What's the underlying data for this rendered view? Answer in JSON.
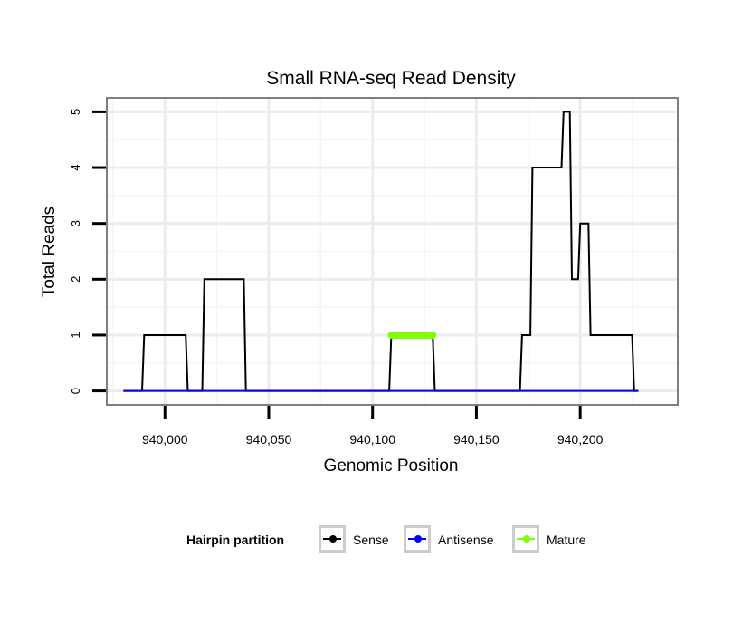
{
  "chart_data": {
    "type": "line",
    "title": "Small RNA-seq Read Density",
    "xlabel": "Genomic Position",
    "ylabel": "Total Reads",
    "xlim": [
      939972,
      940247
    ],
    "ylim": [
      -0.25,
      5.25
    ],
    "x_ticks": [
      940000,
      940050,
      940100,
      940150,
      940200
    ],
    "x_tick_labels": [
      "940,000",
      "940,050",
      "940,100",
      "940,150",
      "940,200"
    ],
    "y_ticks": [
      0,
      1,
      2,
      3,
      4,
      5
    ],
    "y_tick_labels": [
      "0",
      "1",
      "2",
      "3",
      "4",
      "5"
    ],
    "grid": true,
    "legend": {
      "title": "Hairpin partition",
      "position": "bottom",
      "entries": [
        "Sense",
        "Antisense",
        "Mature"
      ]
    },
    "series": [
      {
        "name": "Sense",
        "color": "#000000",
        "x": [
          939980,
          939989,
          939990,
          940010,
          940011,
          940018,
          940019,
          940038,
          940039,
          940108,
          940109,
          940129,
          940130,
          940171,
          940172,
          940176,
          940177,
          940191,
          940192,
          940195,
          940196,
          940199,
          940200,
          940204,
          940205,
          940209,
          940210,
          940225,
          940226,
          940228
        ],
        "y": [
          0,
          0,
          1,
          1,
          0,
          0,
          2,
          2,
          0,
          0,
          1,
          1,
          0,
          0,
          1,
          1,
          4,
          4,
          5,
          5,
          2,
          2,
          3,
          3,
          1,
          1,
          1,
          1,
          0,
          0
        ]
      },
      {
        "name": "Antisense",
        "color": "#0000ff",
        "x": [
          939980,
          940228
        ],
        "y": [
          0,
          0
        ]
      },
      {
        "name": "Mature",
        "color": "#7fff00",
        "x": [
          940109,
          940110,
          940111,
          940112,
          940113,
          940114,
          940115,
          940116,
          940117,
          940118,
          940119,
          940120,
          940121,
          940122,
          940123,
          940124,
          940125,
          940126,
          940127,
          940128,
          940129
        ],
        "y": [
          1,
          1,
          1,
          1,
          1,
          1,
          1,
          1,
          1,
          1,
          1,
          1,
          1,
          1,
          1,
          1,
          1,
          1,
          1,
          1,
          1
        ]
      }
    ]
  }
}
